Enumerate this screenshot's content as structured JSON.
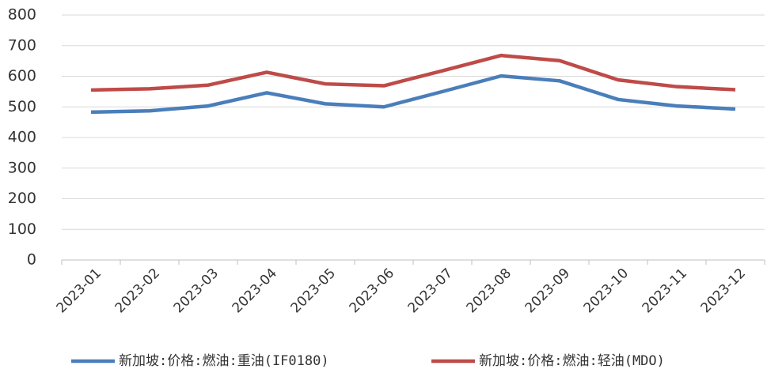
{
  "chart_data": {
    "type": "line",
    "categories": [
      "2023-01",
      "2023-02",
      "2023-03",
      "2023-04",
      "2023-05",
      "2023-06",
      "2023-07",
      "2023-08",
      "2023-09",
      "2023-10",
      "2023-11",
      "2023-12"
    ],
    "series": [
      {
        "name": "新加坡:价格:燃油:重油(IF0180)",
        "color": "#4a7ebb",
        "values": [
          483,
          487,
          503,
          546,
          510,
          500,
          550,
          601,
          585,
          524,
          503,
          493
        ]
      },
      {
        "name": "新加坡:价格:燃油:轻油(MDO)",
        "color": "#be4b48",
        "values": [
          555,
          559,
          571,
          613,
          575,
          569,
          618,
          668,
          651,
          588,
          566,
          556
        ]
      }
    ],
    "ylim": [
      0,
      800
    ],
    "yticks": [
      0,
      100,
      200,
      300,
      400,
      500,
      600,
      700,
      800
    ],
    "grid": true,
    "legend": "bottom"
  }
}
